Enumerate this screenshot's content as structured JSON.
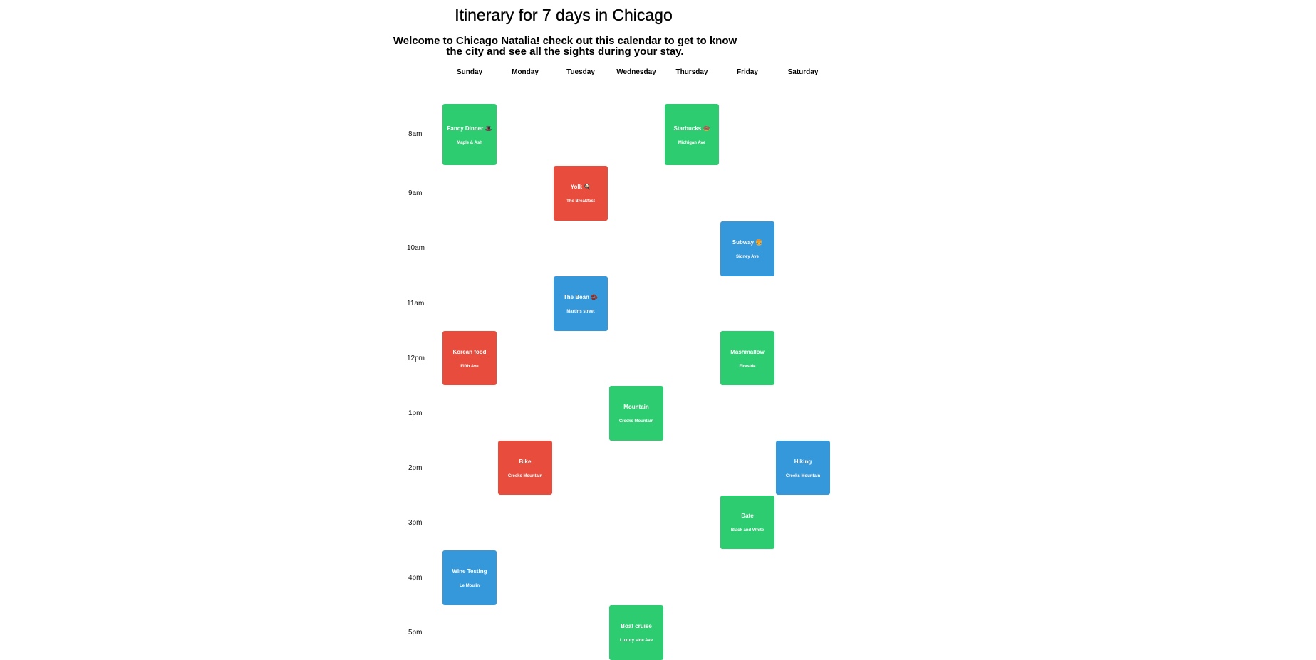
{
  "page": {
    "title": "Itinerary for 7 days in Chicago",
    "subtitle": "Welcome to Chicago Natalia! check out this calendar to get to know the city and see all the sights during your stay."
  },
  "days": [
    "Sunday",
    "Monday",
    "Tuesday",
    "Wednesday",
    "Thursday",
    "Friday",
    "Saturday"
  ],
  "times": [
    "8am",
    "9am",
    "10am",
    "11am",
    "12pm",
    "1pm",
    "2pm",
    "3pm",
    "4pm",
    "5pm"
  ],
  "colors": {
    "green": "#2ecc71",
    "red": "#e74c3c",
    "blue": "#3498db"
  },
  "events": [
    {
      "name": "Fancy Dinner",
      "emoji": "🎩",
      "location": "Maple & Ash",
      "day": "Sunday",
      "time": "8am",
      "color": "green"
    },
    {
      "name": "Starbucks",
      "emoji": "🍩",
      "location": "Michigan Ave",
      "day": "Thursday",
      "time": "8am",
      "color": "green"
    },
    {
      "name": "Yolk",
      "emoji": "🍳",
      "location": "The Breakfast",
      "day": "Tuesday",
      "time": "9am",
      "color": "red"
    },
    {
      "name": "Subway",
      "emoji": "🍔",
      "location": "Sidney Ave",
      "day": "Friday",
      "time": "10am",
      "color": "blue"
    },
    {
      "name": "The Bean",
      "emoji": "🫘",
      "location": "Martins street",
      "day": "Tuesday",
      "time": "11am",
      "color": "blue"
    },
    {
      "name": "Korean food",
      "emoji": "",
      "location": "Fifth Ave",
      "day": "Sunday",
      "time": "12pm",
      "color": "red"
    },
    {
      "name": "Mashmallow",
      "emoji": "",
      "location": "Fireside",
      "day": "Friday",
      "time": "12pm",
      "color": "green"
    },
    {
      "name": "Mountain",
      "emoji": "",
      "location": "Creeks Mountain",
      "day": "Wednesday",
      "time": "1pm",
      "color": "green"
    },
    {
      "name": "Bike",
      "emoji": "",
      "location": "Creeks Mountain",
      "day": "Monday",
      "time": "2pm",
      "color": "red"
    },
    {
      "name": "Hiking",
      "emoji": "",
      "location": "Creeks Mountain",
      "day": "Saturday",
      "time": "2pm",
      "color": "blue"
    },
    {
      "name": "Date",
      "emoji": "",
      "location": "Black and White",
      "day": "Friday",
      "time": "3pm",
      "color": "green"
    },
    {
      "name": "Wine Testing",
      "emoji": "",
      "location": "Le Moulin",
      "day": "Sunday",
      "time": "4pm",
      "color": "blue"
    },
    {
      "name": "Boat cruise",
      "emoji": "",
      "location": "Luxury side Ave",
      "day": "Wednesday",
      "time": "5pm",
      "color": "green"
    }
  ]
}
